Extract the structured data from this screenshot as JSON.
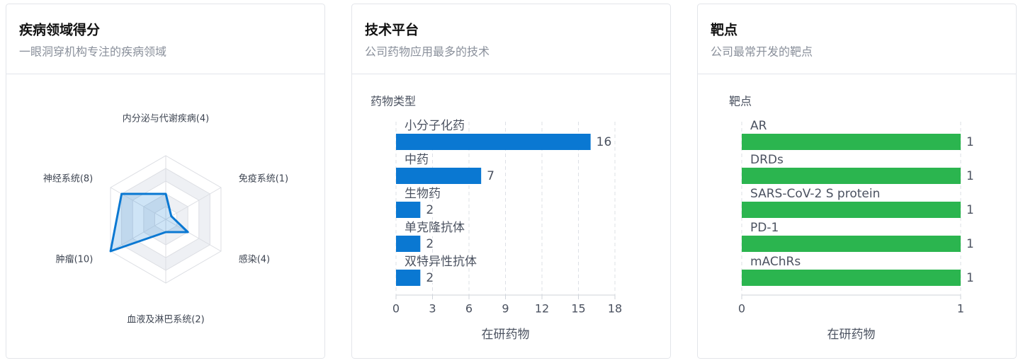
{
  "chart_data": [
    {
      "type": "radar",
      "title": "疾病领域得分",
      "subtitle": "一眼洞穿机构专注的疾病领域",
      "categories": [
        "内分泌与代谢疾病(4)",
        "免疫系统(1)",
        "感染(4)",
        "血液及淋巴系统(2)",
        "肿瘤(10)",
        "神经系统(8)"
      ],
      "values": [
        4,
        1,
        4,
        2,
        10,
        8
      ],
      "rlim": [
        0,
        10
      ],
      "rticks": [
        2,
        4,
        6,
        8,
        10
      ],
      "color": "#0a78d2"
    },
    {
      "type": "hbar",
      "title": "技术平台",
      "subtitle": "公司药物应用最多的技术",
      "y_label": "药物类型",
      "x_label": "在研药物",
      "categories": [
        "小分子化药",
        "中药",
        "生物药",
        "单克隆抗体",
        "双特异性抗体"
      ],
      "values": [
        16,
        7,
        2,
        2,
        2
      ],
      "xlim": [
        0,
        18
      ],
      "xticks": [
        0,
        3,
        6,
        9,
        12,
        15,
        18
      ],
      "color": "#0a78d2",
      "grid": true
    },
    {
      "type": "hbar",
      "title": "靶点",
      "subtitle": "公司最常开发的靶点",
      "y_label": "靶点",
      "x_label": "在研药物",
      "categories": [
        "AR",
        "DRDs",
        "SARS-CoV-2 S protein",
        "PD-1",
        "mAChRs"
      ],
      "values": [
        1,
        1,
        1,
        1,
        1
      ],
      "xlim": [
        0,
        1
      ],
      "xticks": [
        0,
        1
      ],
      "color": "#2bb54f",
      "grid": true
    }
  ]
}
